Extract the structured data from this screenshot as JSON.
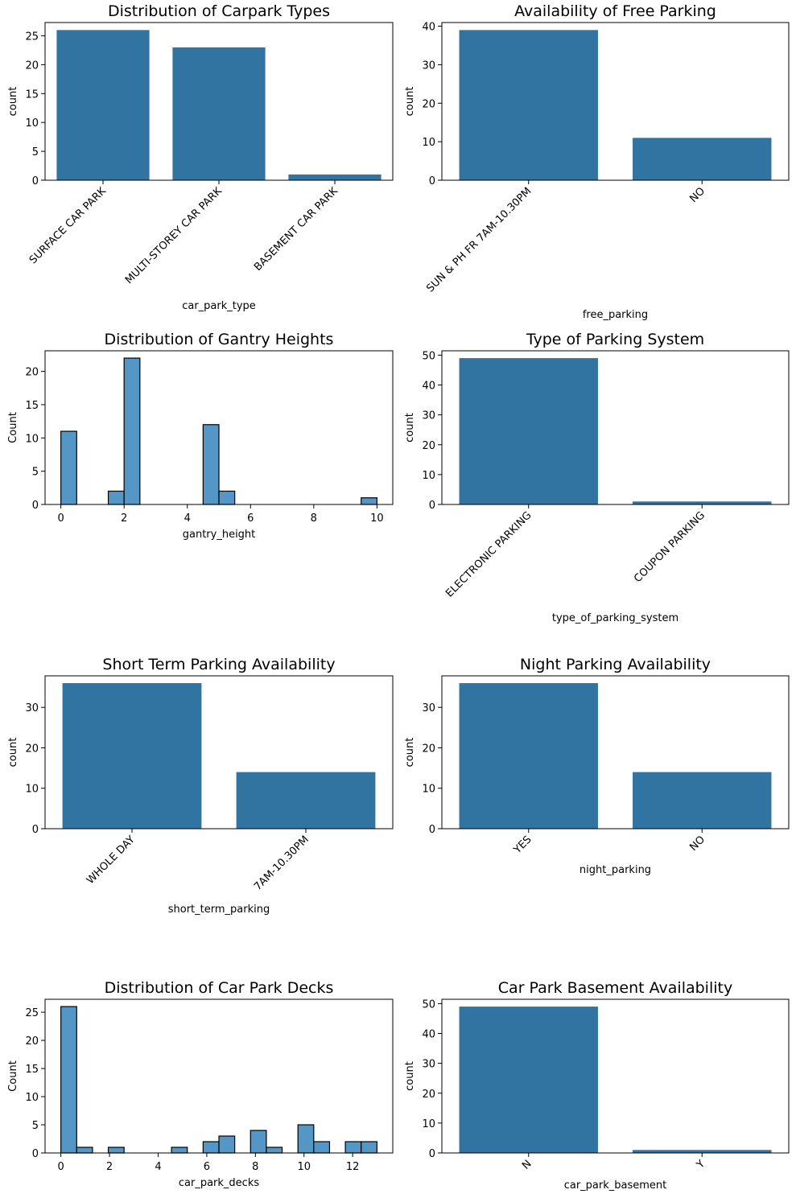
{
  "chart_data": [
    {
      "type": "bar",
      "title": "Distribution of Carpark Types",
      "xlabel": "car_park_type",
      "ylabel": "count",
      "categories": [
        "SURFACE CAR PARK",
        "MULTI-STOREY CAR PARK",
        "BASEMENT CAR PARK"
      ],
      "values": [
        26,
        23,
        1
      ],
      "ylim": [
        0,
        27.3
      ],
      "yticks": [
        0,
        5,
        10,
        15,
        20,
        25
      ],
      "tick_rotation": 45,
      "color": "#3274a1",
      "grid": false
    },
    {
      "type": "bar",
      "title": "Availability of Free Parking",
      "xlabel": "free_parking",
      "ylabel": "count",
      "categories": [
        "SUN & PH FR 7AM-10.30PM",
        "NO"
      ],
      "values": [
        39,
        11
      ],
      "ylim": [
        0,
        40.95
      ],
      "yticks": [
        0,
        10,
        20,
        30,
        40
      ],
      "tick_rotation": 45,
      "color": "#3274a1",
      "grid": false
    },
    {
      "type": "histogram",
      "title": "Distribution of Gantry Heights",
      "xlabel": "gantry_height",
      "ylabel": "Count",
      "bin_edges": [
        0,
        0.5,
        1,
        1.5,
        2,
        2.5,
        3,
        3.5,
        4,
        4.5,
        5,
        5.5,
        6,
        6.5,
        7,
        7.5,
        8,
        8.5,
        9,
        9.5,
        10
      ],
      "values": [
        11,
        0,
        0,
        2,
        22,
        0,
        0,
        0,
        0,
        12,
        2,
        0,
        0,
        0,
        0,
        0,
        0,
        0,
        0,
        1
      ],
      "xlim": [
        -0.5,
        10.5
      ],
      "xticks": [
        0,
        2,
        4,
        6,
        8,
        10
      ],
      "ylim": [
        0,
        23.1
      ],
      "yticks": [
        0,
        5,
        10,
        15,
        20
      ],
      "color": "#5497c6",
      "edgecolor": "#000000",
      "grid": false
    },
    {
      "type": "bar",
      "title": "Type of Parking System",
      "xlabel": "type_of_parking_system",
      "ylabel": "count",
      "categories": [
        "ELECTRONIC PARKING",
        "COUPON PARKING"
      ],
      "values": [
        49,
        1
      ],
      "ylim": [
        0,
        51.45
      ],
      "yticks": [
        0,
        10,
        20,
        30,
        40,
        50
      ],
      "tick_rotation": 45,
      "color": "#3274a1",
      "grid": false
    },
    {
      "type": "bar",
      "title": "Short Term Parking Availability",
      "xlabel": "short_term_parking",
      "ylabel": "count",
      "categories": [
        "WHOLE DAY",
        "7AM-10.30PM"
      ],
      "values": [
        36,
        14
      ],
      "ylim": [
        0,
        37.8
      ],
      "yticks": [
        0,
        10,
        20,
        30
      ],
      "tick_rotation": 45,
      "color": "#3274a1",
      "grid": false
    },
    {
      "type": "bar",
      "title": "Night Parking Availability",
      "xlabel": "night_parking",
      "ylabel": "count",
      "categories": [
        "YES",
        "NO"
      ],
      "values": [
        36,
        14
      ],
      "ylim": [
        0,
        37.8
      ],
      "yticks": [
        0,
        10,
        20,
        30
      ],
      "tick_rotation": 45,
      "color": "#3274a1",
      "grid": false
    },
    {
      "type": "histogram",
      "title": "Distribution of Car Park Decks",
      "xlabel": "car_park_decks",
      "ylabel": "Count",
      "bin_edges": [
        0,
        0.65,
        1.3,
        1.95,
        2.6,
        3.25,
        3.9,
        4.55,
        5.2,
        5.85,
        6.5,
        7.15,
        7.8,
        8.45,
        9.1,
        9.75,
        10.4,
        11.05,
        11.7,
        12.35,
        13
      ],
      "values": [
        26,
        1,
        0,
        1,
        0,
        0,
        0,
        1,
        0,
        2,
        3,
        0,
        4,
        1,
        0,
        5,
        2,
        0,
        2,
        2
      ],
      "xlim": [
        -0.65,
        13.65
      ],
      "xticks": [
        0,
        2,
        4,
        6,
        8,
        10,
        12
      ],
      "ylim": [
        0,
        27.3
      ],
      "yticks": [
        0,
        5,
        10,
        15,
        20,
        25
      ],
      "color": "#5497c6",
      "edgecolor": "#000000",
      "grid": false
    },
    {
      "type": "bar",
      "title": "Car Park Basement Availability",
      "xlabel": "car_park_basement",
      "ylabel": "count",
      "categories": [
        "N",
        "Y"
      ],
      "values": [
        49,
        1
      ],
      "ylim": [
        0,
        51.45
      ],
      "yticks": [
        0,
        10,
        20,
        30,
        40,
        50
      ],
      "tick_rotation": 45,
      "color": "#3274a1",
      "grid": false
    }
  ]
}
